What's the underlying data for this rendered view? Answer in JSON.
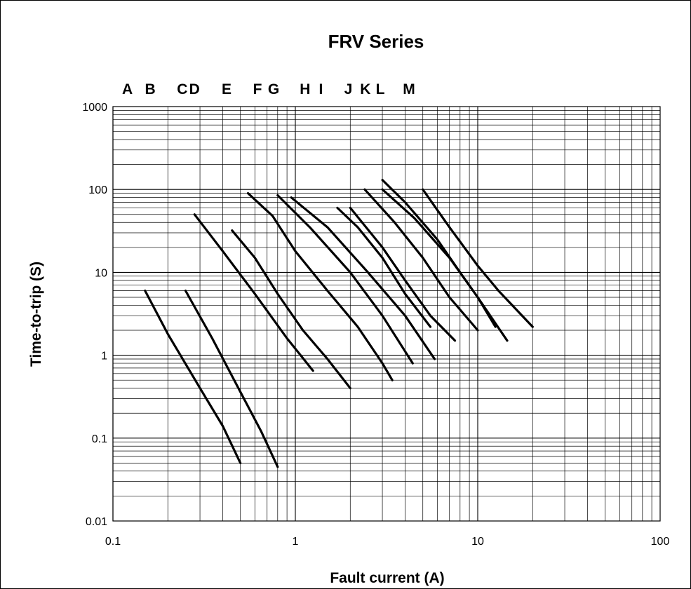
{
  "chart_data": {
    "type": "line",
    "title": "FRV Series",
    "xlabel": "Fault current (A)",
    "ylabel": "Time-to-trip (S)",
    "x_scale": "log",
    "y_scale": "log",
    "xlim": [
      0.1,
      100
    ],
    "ylim": [
      0.01,
      1000
    ],
    "grid": true,
    "x_ticks": [
      0.1,
      1,
      10,
      100
    ],
    "x_tick_labels": [
      "0.1",
      "1",
      "10",
      "100"
    ],
    "y_ticks": [
      0.01,
      0.1,
      1,
      10,
      100,
      1000
    ],
    "y_tick_labels": [
      "0.01",
      "0.1",
      "1",
      "10",
      "100",
      "1000"
    ],
    "series_letters": [
      {
        "label": "A",
        "x": 0.12
      },
      {
        "label": "B",
        "x": 0.16
      },
      {
        "label": "C",
        "x": 0.24
      },
      {
        "label": "D",
        "x": 0.28
      },
      {
        "label": "E",
        "x": 0.42
      },
      {
        "label": "F",
        "x": 0.62
      },
      {
        "label": "G",
        "x": 0.76
      },
      {
        "label": "H",
        "x": 1.13
      },
      {
        "label": "I",
        "x": 1.38
      },
      {
        "label": "J",
        "x": 1.95
      },
      {
        "label": "K",
        "x": 2.42
      },
      {
        "label": "L",
        "x": 2.92
      },
      {
        "label": "M",
        "x": 4.2
      }
    ],
    "series": [
      {
        "points": [
          [
            0.15,
            6.0
          ],
          [
            0.2,
            1.8
          ],
          [
            0.3,
            0.4
          ],
          [
            0.4,
            0.14
          ],
          [
            0.5,
            0.05
          ]
        ]
      },
      {
        "points": [
          [
            0.25,
            6.0
          ],
          [
            0.35,
            1.6
          ],
          [
            0.5,
            0.36
          ],
          [
            0.65,
            0.12
          ],
          [
            0.8,
            0.045
          ]
        ]
      },
      {
        "points": [
          [
            0.28,
            50
          ],
          [
            0.4,
            18
          ],
          [
            0.6,
            5.5
          ],
          [
            0.9,
            1.6
          ],
          [
            1.25,
            0.65
          ]
        ]
      },
      {
        "points": [
          [
            0.45,
            32
          ],
          [
            0.6,
            15
          ],
          [
            0.8,
            5.5
          ],
          [
            1.1,
            2.0
          ],
          [
            1.5,
            0.9
          ],
          [
            2.0,
            0.4
          ]
        ]
      },
      {
        "points": [
          [
            0.55,
            90
          ],
          [
            0.75,
            48
          ],
          [
            1.0,
            18
          ],
          [
            1.5,
            6.0
          ],
          [
            2.2,
            2.2
          ],
          [
            3.0,
            0.8
          ],
          [
            3.4,
            0.5
          ]
        ]
      },
      {
        "points": [
          [
            0.8,
            85
          ],
          [
            1.2,
            35
          ],
          [
            2.0,
            10
          ],
          [
            3.0,
            3.0
          ],
          [
            4.4,
            0.8
          ]
        ]
      },
      {
        "points": [
          [
            0.95,
            80
          ],
          [
            1.5,
            35
          ],
          [
            2.5,
            10
          ],
          [
            4.0,
            3.0
          ],
          [
            5.8,
            0.9
          ]
        ]
      },
      {
        "points": [
          [
            1.7,
            60
          ],
          [
            2.2,
            35
          ],
          [
            3.0,
            15
          ],
          [
            4.0,
            5.5
          ],
          [
            5.5,
            2.2
          ]
        ]
      },
      {
        "points": [
          [
            2.0,
            60
          ],
          [
            3.0,
            20
          ],
          [
            4.0,
            8.0
          ],
          [
            5.5,
            3.0
          ],
          [
            7.5,
            1.5
          ]
        ]
      },
      {
        "points": [
          [
            2.4,
            100
          ],
          [
            3.5,
            40
          ],
          [
            5.0,
            15
          ],
          [
            7.0,
            5.0
          ],
          [
            10,
            2.0
          ]
        ]
      },
      {
        "points": [
          [
            3.0,
            130
          ],
          [
            4.0,
            70
          ],
          [
            6.0,
            25
          ],
          [
            8.0,
            10
          ],
          [
            10,
            5.0
          ],
          [
            12.5,
            2.2
          ]
        ]
      },
      {
        "points": [
          [
            3.0,
            100
          ],
          [
            4.5,
            45
          ],
          [
            7.0,
            15
          ],
          [
            10,
            5.0
          ],
          [
            14.5,
            1.5
          ]
        ]
      },
      {
        "points": [
          [
            5.0,
            100
          ],
          [
            7.0,
            35
          ],
          [
            10,
            12
          ],
          [
            13,
            6.0
          ],
          [
            20,
            2.2
          ]
        ]
      }
    ]
  }
}
